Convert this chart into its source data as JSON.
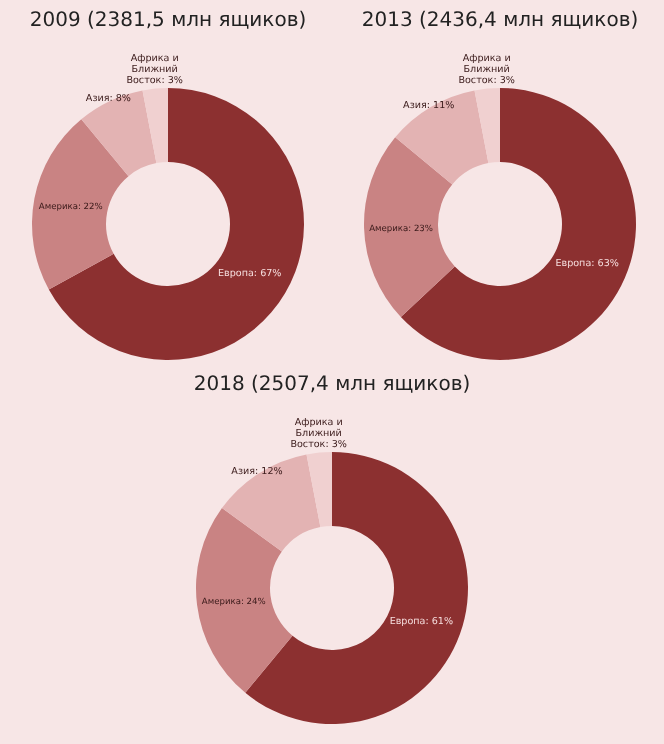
{
  "chart_data": [
    {
      "type": "donut",
      "title": "2009 (2381,5 млн ящиков)",
      "categories": [
        "Европа",
        "Америка",
        "Азия",
        "Африка и Ближний Восток"
      ],
      "values": [
        67,
        22,
        8,
        3
      ],
      "value_labels": [
        "67%",
        "22%",
        "8%",
        "3%"
      ],
      "colors": [
        "#8c3030",
        "#c98383",
        "#e3b3b3",
        "#f0d0d0"
      ]
    },
    {
      "type": "donut",
      "title": "2013 (2436,4 млн ящиков)",
      "categories": [
        "Европа",
        "Америка",
        "Азия",
        "Африка и Ближний Восток"
      ],
      "values": [
        63,
        23,
        11,
        3
      ],
      "value_labels": [
        "63%",
        "23%",
        "11%",
        "3%"
      ],
      "colors": [
        "#8c3030",
        "#c98383",
        "#e3b3b3",
        "#f0d0d0"
      ]
    },
    {
      "type": "donut",
      "title": "2018 (2507,4 млн ящиков)",
      "categories": [
        "Европа",
        "Америка",
        "Азия",
        "Африка и Ближний Восток"
      ],
      "values": [
        61,
        24,
        12,
        3
      ],
      "value_labels": [
        "61%",
        "24%",
        "12%",
        "3%"
      ],
      "colors": [
        "#8c3030",
        "#c98383",
        "#e3b3b3",
        "#f0d0d0"
      ]
    }
  ]
}
